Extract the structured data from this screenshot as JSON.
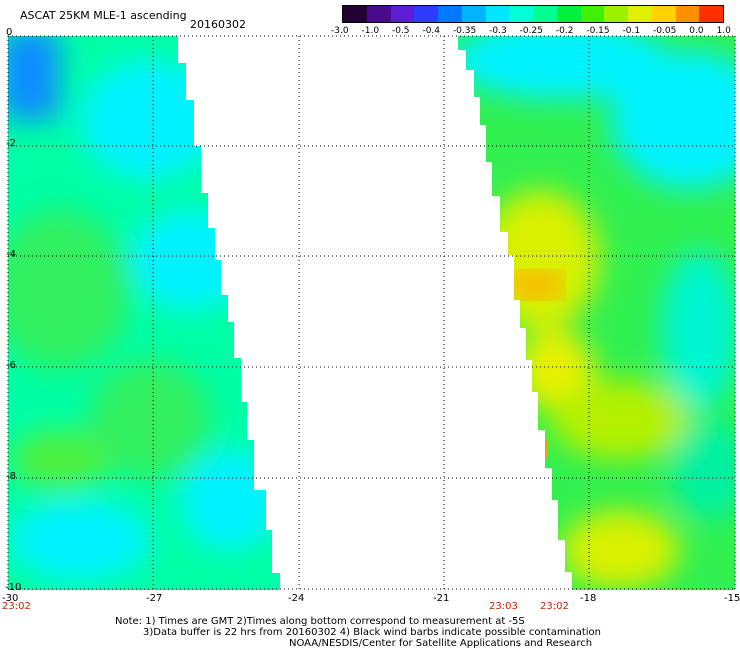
{
  "header": {
    "title": "ASCAT 25KM MLE-1 ascending",
    "date": "20160302"
  },
  "colorbar": {
    "colors": [
      "#220033",
      "#4a0a8c",
      "#5b1ed6",
      "#2f3cff",
      "#0078ff",
      "#00b4ff",
      "#00e6ff",
      "#00ffd4",
      "#00ff90",
      "#00f040",
      "#40f000",
      "#9cf000",
      "#e0f000",
      "#ffd200",
      "#ff9000",
      "#ff3000"
    ],
    "labels": [
      "-3.0",
      "-1.0",
      "-0.5",
      "-0.4",
      "-0.35",
      "-0.3",
      "-0.25",
      "-0.2",
      "-0.15",
      "-0.1",
      "-0.05",
      "0.0",
      "1.0"
    ]
  },
  "map": {
    "lon_ticks": [
      "-30",
      "-27",
      "-24",
      "-21",
      "-18",
      "-15"
    ],
    "lat_ticks": [
      "0",
      "-2",
      "-4",
      "-6",
      "-8",
      "-10"
    ],
    "times": [
      "23:02",
      "23:03",
      "23:02"
    ]
  },
  "notes": [
    "Note: 1) Times are GMT 2)Times along bottom correspond to measurement at -5S",
    "3)Data buffer is 22 hrs from 20160302 4) Black wind barbs indicate possible contamination",
    "NOAA/NESDIS/Center for Satellite Applications and Research"
  ]
}
